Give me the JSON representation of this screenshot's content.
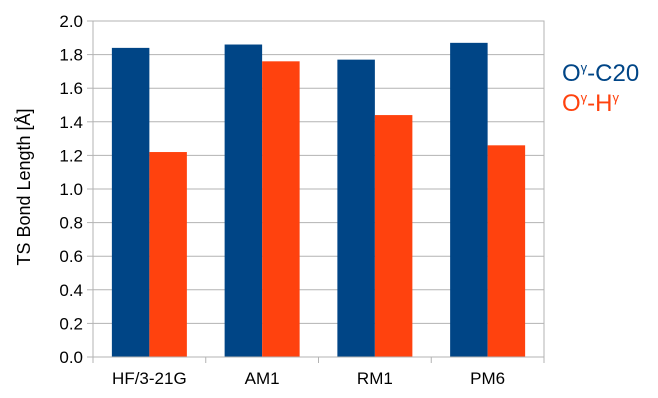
{
  "chart_data": {
    "type": "bar",
    "title": "",
    "xlabel": "",
    "ylabel": "TS Bond Length  [Å]",
    "ylim": [
      0,
      2.0
    ],
    "yticks": [
      "0.0",
      "0.2",
      "0.4",
      "0.6",
      "0.8",
      "1.0",
      "1.2",
      "1.4",
      "1.6",
      "1.8",
      "2.0"
    ],
    "grid": true,
    "legend_position": "right",
    "categories": [
      "HF/3-21G",
      "AM1",
      "RM1",
      "PM6"
    ],
    "series": [
      {
        "name": "Oγ-C20",
        "legend_parts": [
          "O",
          "γ",
          "-C20"
        ],
        "color": "#004586",
        "values": [
          1.84,
          1.86,
          1.77,
          1.87
        ]
      },
      {
        "name": "Oγ-Hγ",
        "legend_parts": [
          "O",
          "γ",
          "-H",
          "γ"
        ],
        "color": "#ff420e",
        "values": [
          1.22,
          1.76,
          1.44,
          1.26
        ]
      }
    ]
  }
}
